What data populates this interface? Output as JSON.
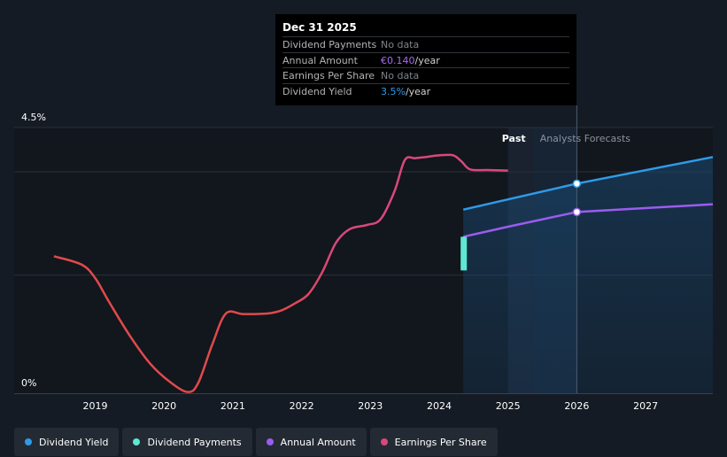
{
  "tooltip": {
    "date": "Dec 31 2025",
    "rows": [
      {
        "label": "Dividend Payments",
        "value": "No data",
        "highlight": "",
        "unit": ""
      },
      {
        "label": "Annual Amount",
        "value": "",
        "highlight": "€0.140",
        "unit": "/year"
      },
      {
        "label": "Earnings Per Share",
        "value": "No data",
        "highlight": "",
        "unit": ""
      },
      {
        "label": "Dividend Yield",
        "value": "",
        "highlight": "3.5%",
        "unit": "/year"
      }
    ]
  },
  "chart_data": {
    "type": "line",
    "title": "",
    "y_axis_labels": {
      "top": "4.5%",
      "bottom": "0%"
    },
    "ylim": [
      0,
      4.5
    ],
    "xlim": [
      2018.1,
      2028.0
    ],
    "x_ticks": [
      "2019",
      "2020",
      "2021",
      "2022",
      "2023",
      "2024",
      "2025",
      "2026",
      "2027"
    ],
    "past_label": "Past",
    "forecast_label": "Analysts Forecasts",
    "forecast_start": 2024.35,
    "past_end": 2025.0,
    "hover_x": 2026.0,
    "series": [
      {
        "name": "Earnings Per Share",
        "color": "#d9487a",
        "points": [
          [
            2018.4,
            2.32
          ],
          [
            2018.8,
            2.18
          ],
          [
            2019.0,
            1.95
          ],
          [
            2019.2,
            1.55
          ],
          [
            2019.5,
            0.98
          ],
          [
            2019.8,
            0.5
          ],
          [
            2020.1,
            0.18
          ],
          [
            2020.35,
            0.02
          ],
          [
            2020.5,
            0.18
          ],
          [
            2020.7,
            0.82
          ],
          [
            2020.9,
            1.35
          ],
          [
            2021.15,
            1.34
          ],
          [
            2021.5,
            1.35
          ],
          [
            2021.7,
            1.4
          ],
          [
            2021.9,
            1.52
          ],
          [
            2022.1,
            1.68
          ],
          [
            2022.3,
            2.05
          ],
          [
            2022.5,
            2.55
          ],
          [
            2022.7,
            2.78
          ],
          [
            2022.95,
            2.85
          ],
          [
            2023.15,
            2.95
          ],
          [
            2023.35,
            3.42
          ],
          [
            2023.5,
            3.95
          ],
          [
            2023.65,
            3.98
          ],
          [
            2023.8,
            4.0
          ],
          [
            2024.0,
            4.03
          ],
          [
            2024.2,
            4.03
          ],
          [
            2024.32,
            3.93
          ],
          [
            2024.45,
            3.79
          ],
          [
            2024.7,
            3.78
          ],
          [
            2025.0,
            3.77
          ]
        ]
      },
      {
        "name": "Dividend Yield",
        "color": "#2f9be8",
        "points": [
          [
            2024.35,
            3.11
          ],
          [
            2026.0,
            3.55
          ],
          [
            2028.0,
            4.0
          ]
        ]
      },
      {
        "name": "Annual Amount",
        "color": "#9b5cf0",
        "points": [
          [
            2024.35,
            2.65
          ],
          [
            2025.0,
            2.82
          ],
          [
            2026.0,
            3.07
          ],
          [
            2028.0,
            3.2
          ]
        ]
      },
      {
        "name": "Dividend Payments",
        "color": "#5ee8d3",
        "points": [
          [
            2024.35,
            2.65
          ],
          [
            2024.35,
            2.08
          ]
        ]
      }
    ]
  },
  "legend": [
    {
      "label": "Dividend Yield",
      "color": "#2f9be8"
    },
    {
      "label": "Dividend Payments",
      "color": "#5ee8d3"
    },
    {
      "label": "Annual Amount",
      "color": "#9b5cf0"
    },
    {
      "label": "Earnings Per Share",
      "color": "#d9487a"
    }
  ]
}
